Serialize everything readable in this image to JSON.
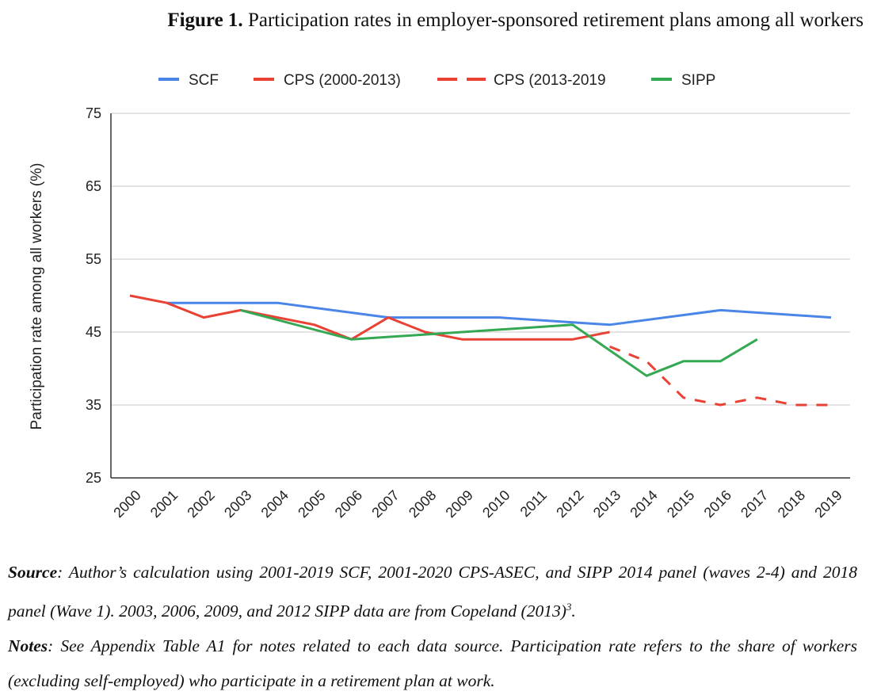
{
  "figure": {
    "label": "Figure 1.",
    "title": "Participation rates in employer-sponsored retirement plans among all workers"
  },
  "chart_data": {
    "type": "line",
    "ylabel": "Participation rate among all workers (%)",
    "xlabel": "",
    "ylim": [
      25,
      75
    ],
    "yticks": [
      25,
      35,
      45,
      55,
      65,
      75
    ],
    "grid": true,
    "legend_position": "top-center",
    "categories": [
      "2000",
      "2001",
      "2002",
      "2003",
      "2004",
      "2005",
      "2006",
      "2007",
      "2008",
      "2009",
      "2010",
      "2011",
      "2012",
      "2013",
      "2014",
      "2015",
      "2016",
      "2017",
      "2018",
      "2019"
    ],
    "series": [
      {
        "name": "SCF",
        "color": "#4a86e8",
        "dash": false,
        "values": [
          null,
          49,
          null,
          null,
          49,
          null,
          null,
          47,
          null,
          null,
          47,
          null,
          null,
          46,
          null,
          null,
          48,
          null,
          null,
          47
        ]
      },
      {
        "name": "CPS (2000-2013)",
        "color": "#e94235",
        "dash": false,
        "values": [
          50,
          49,
          47,
          48,
          47,
          46,
          44,
          47,
          45,
          44,
          44,
          44,
          44,
          45,
          null,
          null,
          null,
          null,
          null,
          null
        ]
      },
      {
        "name": "CPS (2013-2019",
        "color": "#e94235",
        "dash": true,
        "values": [
          null,
          null,
          null,
          null,
          null,
          null,
          null,
          null,
          null,
          null,
          null,
          null,
          null,
          43,
          41,
          36,
          35,
          36,
          35,
          35
        ]
      },
      {
        "name": "SIPP",
        "color": "#34a853",
        "dash": false,
        "values": [
          null,
          null,
          null,
          48,
          null,
          null,
          44,
          null,
          null,
          45,
          null,
          null,
          46,
          null,
          39,
          41,
          41,
          44,
          null,
          null
        ]
      }
    ]
  },
  "notes": {
    "source_label": "Source",
    "source_text": ": Author’s calculation using 2001-2019 SCF, 2001-2020 CPS-ASEC, and SIPP 2014 panel (waves 2-4) and 2018 panel (Wave 1). 2003, 2006, 2009, and 2012 SIPP data are from Copeland (2013)",
    "source_footnote": "3",
    "source_end": ".",
    "notes_label": "Notes",
    "notes_text": ": See Appendix Table A1 for notes related to each data source. Participation rate refers to the share of workers (excluding self-employed) who participate in a retirement plan at work."
  }
}
